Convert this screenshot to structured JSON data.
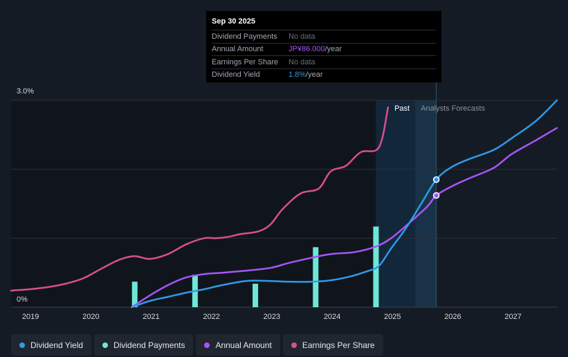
{
  "tooltip": {
    "date": "Sep 30 2025",
    "rows": [
      {
        "label": "Dividend Payments",
        "value": "No data",
        "unit": ""
      },
      {
        "label": "Annual Amount",
        "value": "JP¥86.000",
        "unit": "/year"
      },
      {
        "label": "Earnings Per Share",
        "value": "No data",
        "unit": ""
      },
      {
        "label": "Dividend Yield",
        "value": "1.8%",
        "unit": "/year"
      }
    ]
  },
  "legend": [
    {
      "label": "Dividend Yield",
      "color": "#2f9bea"
    },
    {
      "label": "Dividend Payments",
      "color": "#6ee7d7"
    },
    {
      "label": "Annual Amount",
      "color": "#a855f7"
    },
    {
      "label": "Earnings Per Share",
      "color": "#d94f8f"
    }
  ],
  "chart_data": {
    "type": "line",
    "ytick_labels": [
      "3.0%",
      "0%"
    ],
    "ylim": [
      0,
      3.0
    ],
    "xlim": [
      2018.7,
      2027.75
    ],
    "xtick_labels": [
      "2019",
      "2020",
      "2021",
      "2022",
      "2023",
      "2024",
      "2025",
      "2026",
      "2027"
    ],
    "xticks": [
      2019,
      2020,
      2021,
      2022,
      2023,
      2024,
      2025,
      2026,
      2027
    ],
    "past_label": "Past",
    "forecast_label": "Analysts Forecasts",
    "past_region": [
      2024.75,
      2025.4
    ],
    "forecast_start": 2025.4,
    "current_x": 2025.75,
    "series": [
      {
        "name": "Earnings Per Share",
        "color": "#d94f8f",
        "x": [
          2018.7,
          2019.0,
          2019.3,
          2019.6,
          2019.9,
          2020.2,
          2020.5,
          2020.75,
          2021.0,
          2021.3,
          2021.6,
          2021.9,
          2022.1,
          2022.3,
          2022.5,
          2022.8,
          2023.0,
          2023.2,
          2023.5,
          2023.8,
          2024.0,
          2024.25,
          2024.5,
          2024.8,
          2024.95
        ],
        "y": [
          0.24,
          0.26,
          0.29,
          0.34,
          0.42,
          0.56,
          0.69,
          0.74,
          0.7,
          0.77,
          0.91,
          1.0,
          1.0,
          1.02,
          1.06,
          1.1,
          1.2,
          1.42,
          1.65,
          1.72,
          1.97,
          2.05,
          2.25,
          2.32,
          2.9
        ]
      },
      {
        "name": "Annual Amount",
        "color": "#a855f7",
        "x": [
          2020.7,
          2021.0,
          2021.3,
          2021.6,
          2021.9,
          2022.2,
          2022.6,
          2023.0,
          2023.3,
          2023.7,
          2024.0,
          2024.4,
          2024.75,
          2025.0,
          2025.3,
          2025.6,
          2025.75,
          2026.0,
          2026.3,
          2026.7,
          2027.0,
          2027.4,
          2027.75
        ],
        "y": [
          0.0,
          0.17,
          0.32,
          0.43,
          0.48,
          0.5,
          0.53,
          0.57,
          0.64,
          0.72,
          0.77,
          0.8,
          0.88,
          1.0,
          1.22,
          1.46,
          1.62,
          1.75,
          1.87,
          2.02,
          2.22,
          2.42,
          2.6
        ]
      },
      {
        "name": "Dividend Yield",
        "color": "#2f9bea",
        "x": [
          2020.7,
          2021.0,
          2021.3,
          2021.6,
          2021.9,
          2022.2,
          2022.6,
          2023.0,
          2023.3,
          2023.7,
          2024.0,
          2024.3,
          2024.6,
          2024.8,
          2025.0,
          2025.25,
          2025.5,
          2025.75,
          2026.0,
          2026.3,
          2026.7,
          2027.0,
          2027.4,
          2027.75
        ],
        "y": [
          0.0,
          0.09,
          0.15,
          0.21,
          0.26,
          0.32,
          0.38,
          0.38,
          0.37,
          0.37,
          0.39,
          0.44,
          0.52,
          0.6,
          0.85,
          1.15,
          1.5,
          1.85,
          2.03,
          2.15,
          2.28,
          2.45,
          2.7,
          3.0
        ]
      }
    ],
    "bars": {
      "name": "Dividend Payments",
      "color": "#6ee7d7",
      "x": [
        2020.75,
        2021.75,
        2022.75,
        2023.75,
        2024.75
      ],
      "y": [
        0.37,
        0.47,
        0.34,
        0.87,
        1.17
      ]
    },
    "markers": [
      {
        "series": "Dividend Yield",
        "x": 2025.75,
        "y": 1.85
      },
      {
        "series": "Annual Amount",
        "x": 2025.75,
        "y": 1.62
      }
    ]
  }
}
